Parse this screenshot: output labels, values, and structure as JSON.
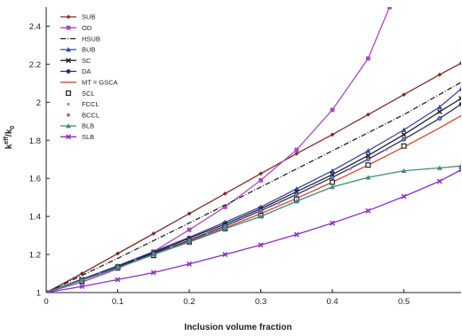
{
  "chart_data": {
    "type": "line",
    "title": "",
    "xlabel": "Inclusion volume fraction",
    "ylabel_main": "k",
    "ylabel_sup": "eff",
    "ylabel_rest": "/k",
    "ylabel_sub": "0",
    "xlim": [
      0,
      0.58
    ],
    "ylim": [
      1,
      2.5
    ],
    "xticks": [
      "0",
      "0.1",
      "0.2",
      "0.3",
      "0.4",
      "0.5"
    ],
    "yticks": [
      "1",
      "1.2",
      "1.4",
      "1.6",
      "1.8",
      "2",
      "2.2",
      "2.4"
    ],
    "grid": false,
    "legend_position": "top-left",
    "series": [
      {
        "name": "SUB",
        "color": "#7a2e2a",
        "dash": "",
        "marker": "diamond",
        "x": [
          0,
          0.05,
          0.1,
          0.15,
          0.2,
          0.25,
          0.3,
          0.35,
          0.4,
          0.45,
          0.5,
          0.55,
          0.58
        ],
        "y": [
          1,
          1.1,
          1.205,
          1.31,
          1.415,
          1.52,
          1.625,
          1.73,
          1.83,
          1.935,
          2.04,
          2.145,
          2.205
        ]
      },
      {
        "name": "OD",
        "color": "#a64bc4",
        "dash": "",
        "marker": "square",
        "x": [
          0,
          0.05,
          0.1,
          0.15,
          0.2,
          0.25,
          0.3,
          0.35,
          0.4,
          0.45,
          0.48
        ],
        "y": [
          1,
          1.055,
          1.125,
          1.215,
          1.33,
          1.45,
          1.59,
          1.75,
          1.96,
          2.23,
          2.5
        ]
      },
      {
        "name": "HSUB",
        "color": "#222222",
        "dash": "6,2,1,2",
        "marker": "none",
        "x": [
          0,
          0.1,
          0.2,
          0.3,
          0.4,
          0.5,
          0.58
        ],
        "y": [
          1,
          1.18,
          1.365,
          1.555,
          1.745,
          1.935,
          2.105
        ]
      },
      {
        "name": "BUB",
        "color": "#3a46a8",
        "dash": "",
        "marker": "triangle",
        "x": [
          0,
          0.05,
          0.1,
          0.15,
          0.2,
          0.25,
          0.3,
          0.35,
          0.4,
          0.45,
          0.5,
          0.55,
          0.58
        ],
        "y": [
          1,
          1.07,
          1.14,
          1.215,
          1.29,
          1.37,
          1.45,
          1.545,
          1.64,
          1.745,
          1.855,
          1.975,
          2.07
        ]
      },
      {
        "name": "SC",
        "color": "#222222",
        "dash": "",
        "marker": "x",
        "x": [
          0,
          0.05,
          0.1,
          0.15,
          0.2,
          0.25,
          0.3,
          0.35,
          0.4,
          0.45,
          0.5,
          0.55,
          0.58
        ],
        "y": [
          1,
          1.07,
          1.138,
          1.21,
          1.285,
          1.36,
          1.44,
          1.53,
          1.62,
          1.72,
          1.83,
          1.95,
          2.02
        ]
      },
      {
        "name": "DA",
        "color": "#24306e",
        "dash": "",
        "marker": "circle",
        "x": [
          0,
          0.05,
          0.1,
          0.15,
          0.2,
          0.25,
          0.3,
          0.35,
          0.4,
          0.45,
          0.5,
          0.55,
          0.58
        ],
        "y": [
          1,
          1.068,
          1.135,
          1.205,
          1.275,
          1.35,
          1.43,
          1.515,
          1.605,
          1.7,
          1.805,
          1.915,
          1.99
        ]
      },
      {
        "name": "MT = GSCA",
        "color": "#d4442c",
        "dash": "",
        "marker": "none",
        "x": [
          0,
          0.05,
          0.1,
          0.15,
          0.2,
          0.25,
          0.3,
          0.35,
          0.4,
          0.45,
          0.5,
          0.55,
          0.58
        ],
        "y": [
          1,
          1.065,
          1.13,
          1.2,
          1.27,
          1.34,
          1.415,
          1.495,
          1.58,
          1.67,
          1.765,
          1.865,
          1.93
        ]
      },
      {
        "name": "SCL",
        "color": "#222222",
        "dash": "none",
        "marker": "open-square",
        "x": [
          0.05,
          0.1,
          0.15,
          0.2,
          0.25,
          0.3,
          0.35,
          0.4,
          0.45,
          0.5
        ],
        "y": [
          1.06,
          1.13,
          1.195,
          1.265,
          1.335,
          1.405,
          1.49,
          1.58,
          1.67,
          1.77
        ]
      },
      {
        "name": "FCCL",
        "color": "#8a86c8",
        "dash": "none",
        "marker": "small-diamond",
        "x": [
          0.05,
          0.075,
          0.1,
          0.125,
          0.15,
          0.175,
          0.2,
          0.225,
          0.25,
          0.275,
          0.3,
          0.325,
          0.35,
          0.375,
          0.4,
          0.425,
          0.45,
          0.475,
          0.5,
          0.525,
          0.55
        ],
        "y": [
          1.07,
          1.1,
          1.135,
          1.17,
          1.205,
          1.24,
          1.275,
          1.31,
          1.35,
          1.39,
          1.43,
          1.47,
          1.515,
          1.56,
          1.605,
          1.65,
          1.7,
          1.75,
          1.805,
          1.86,
          1.915
        ]
      },
      {
        "name": "BCCL",
        "color": "#7a76b8",
        "dash": "none",
        "marker": "small-circle",
        "x": [
          0.05,
          0.1,
          0.15,
          0.2,
          0.25,
          0.3,
          0.35,
          0.4,
          0.45
        ],
        "y": [
          1.068,
          1.135,
          1.205,
          1.275,
          1.35,
          1.43,
          1.515,
          1.605,
          1.7
        ]
      },
      {
        "name": "BLB",
        "color": "#3e8a84",
        "dash": "",
        "marker": "triangle",
        "x": [
          0,
          0.05,
          0.1,
          0.15,
          0.2,
          0.25,
          0.3,
          0.35,
          0.4,
          0.45,
          0.5,
          0.55,
          0.58
        ],
        "y": [
          1,
          1.065,
          1.13,
          1.2,
          1.265,
          1.335,
          1.4,
          1.48,
          1.555,
          1.605,
          1.64,
          1.655,
          1.665
        ]
      },
      {
        "name": "SLB",
        "color": "#8a2ec4",
        "dash": "",
        "marker": "x",
        "x": [
          0,
          0.05,
          0.1,
          0.15,
          0.2,
          0.25,
          0.3,
          0.35,
          0.4,
          0.45,
          0.5,
          0.55,
          0.58
        ],
        "y": [
          1,
          1.032,
          1.068,
          1.105,
          1.15,
          1.2,
          1.25,
          1.305,
          1.365,
          1.43,
          1.505,
          1.585,
          1.645
        ]
      }
    ]
  }
}
